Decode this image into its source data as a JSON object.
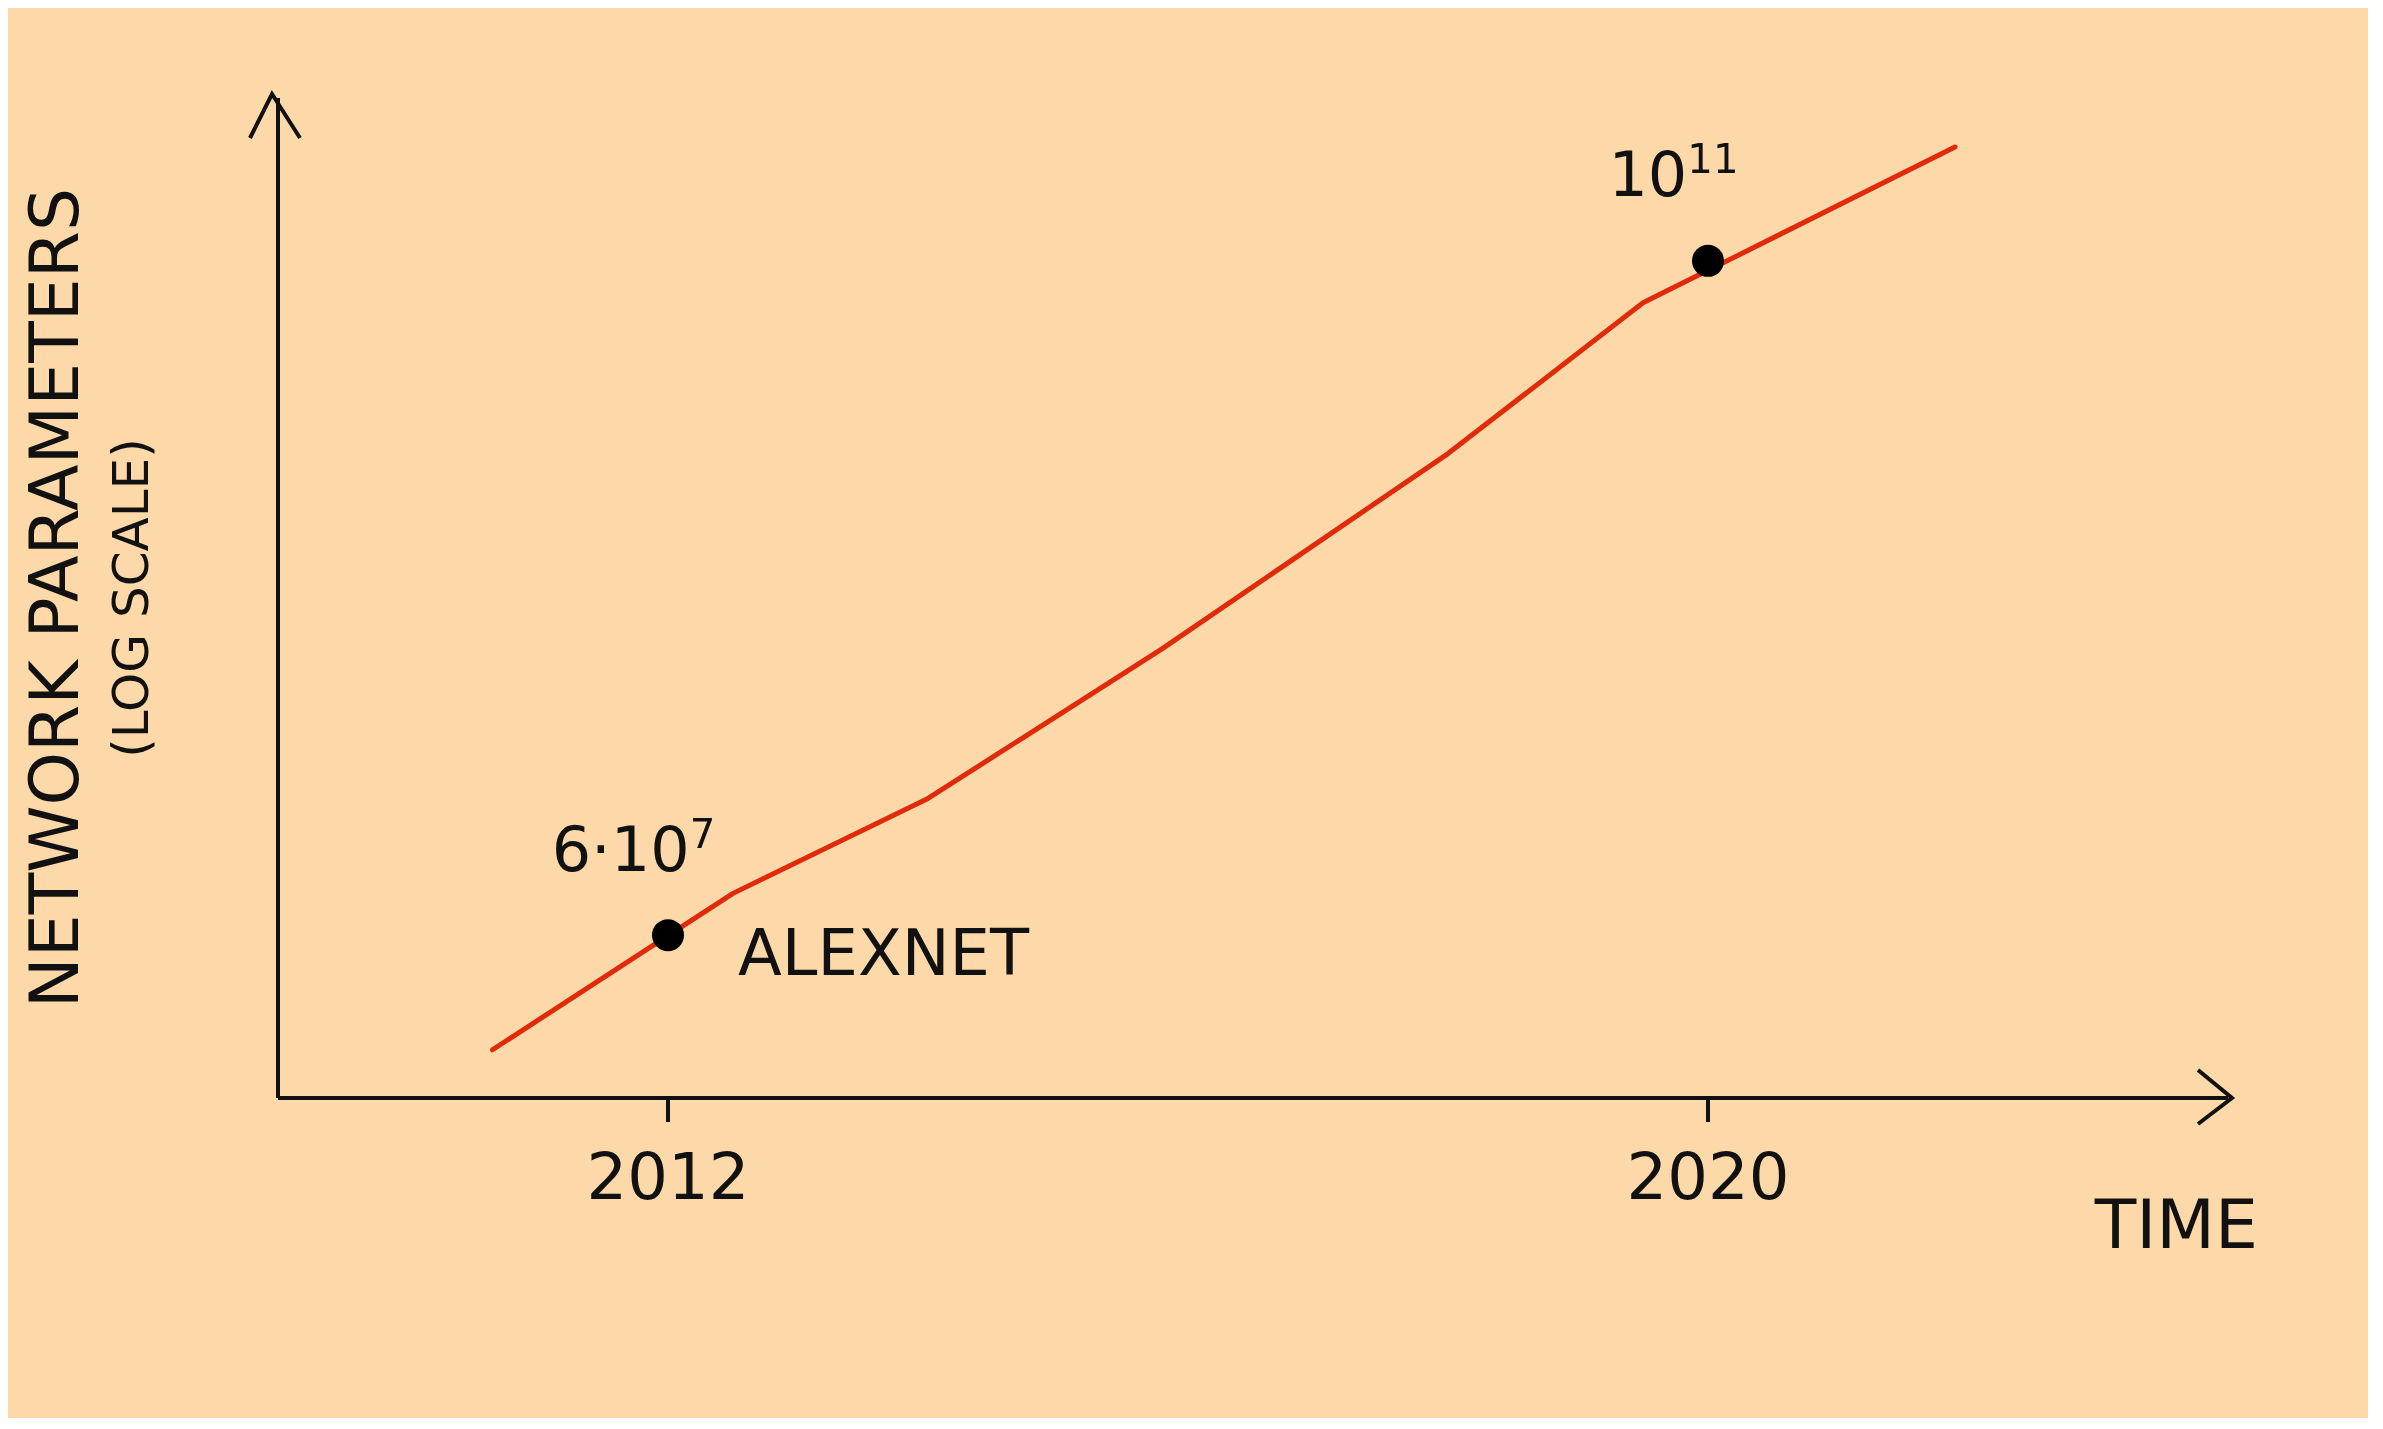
{
  "chart_data": {
    "type": "line",
    "ylabel": "NETWORK PARAMETERS\n(LOG SCALE)",
    "xlabel": "TIME",
    "log": "y",
    "xlim": [
      2009,
      2024
    ],
    "xticks": [
      2012,
      2020
    ],
    "ylim": [
      10000000,
      600000000000
    ],
    "tick_labels": "x",
    "grid": false,
    "series": [
      {
        "color": "#e02a0a",
        "marker": "none",
        "x": [
          2010.65,
          2012.5,
          2014,
          2015.8,
          2018,
          2019.5,
          2021.9
        ],
        "values": [
          17000000,
          95000000,
          270000000,
          1400000000,
          12000000000,
          63000000000,
          350000000000
        ]
      },
      {
        "type": "scatter",
        "color": "#000000",
        "marker": "circle",
        "x": [
          2012,
          2020
        ],
        "values": [
          60000000,
          100000000000
        ],
        "value_labels": [
          "6·10$^{7}$",
          "10$^{11}$"
        ]
      }
    ],
    "annotations": [
      {
        "text": "ALEXNET",
        "x": 2012,
        "y": 60000000
      }
    ]
  }
}
